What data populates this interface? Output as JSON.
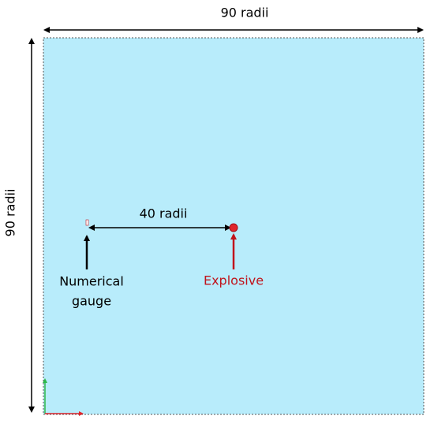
{
  "dimensions": {
    "width_label": "90 radii",
    "height_label": "90 radii",
    "separation_label": "40 radii"
  },
  "nodes": [
    {
      "label": [
        "Numerical",
        "gauge"
      ]
    },
    {
      "label": [
        "Explosive"
      ]
    }
  ]
}
